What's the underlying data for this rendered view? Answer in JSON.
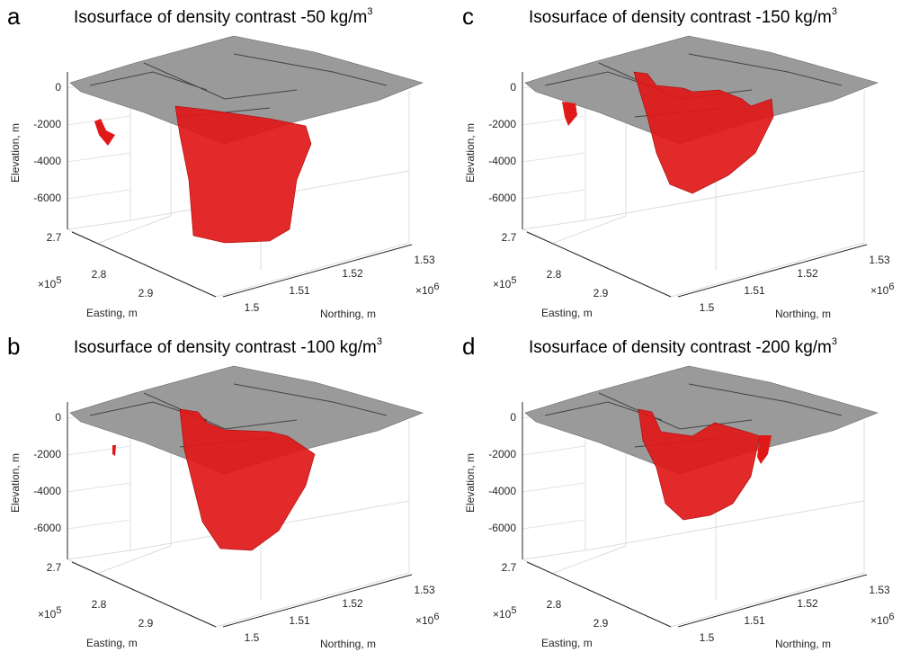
{
  "panels": [
    {
      "letter": "a",
      "title": "Isosurface of density contrast -50 kg/m",
      "title_superscript": "3"
    },
    {
      "letter": "c",
      "title": "Isosurface of density contrast -150 kg/m",
      "title_superscript": "3"
    },
    {
      "letter": "b",
      "title": "Isosurface of density contrast -100 kg/m",
      "title_superscript": "3"
    },
    {
      "letter": "d",
      "title": "Isosurface of density contrast -200 kg/m",
      "title_superscript": "3"
    }
  ],
  "axes": {
    "elevation_label": "Elevation, m",
    "elevation_ticks": [
      "0",
      "-2000",
      "-4000",
      "-6000"
    ],
    "easting_label": "Easting, m",
    "easting_ticks": [
      "2.7",
      "2.8",
      "2.9"
    ],
    "easting_multiplier": "×10",
    "easting_exponent": "5",
    "northing_label": "Northing, m",
    "northing_ticks": [
      "1.5",
      "1.51",
      "1.52",
      "1.53"
    ],
    "northing_multiplier": "×10",
    "northing_exponent": "6"
  }
}
